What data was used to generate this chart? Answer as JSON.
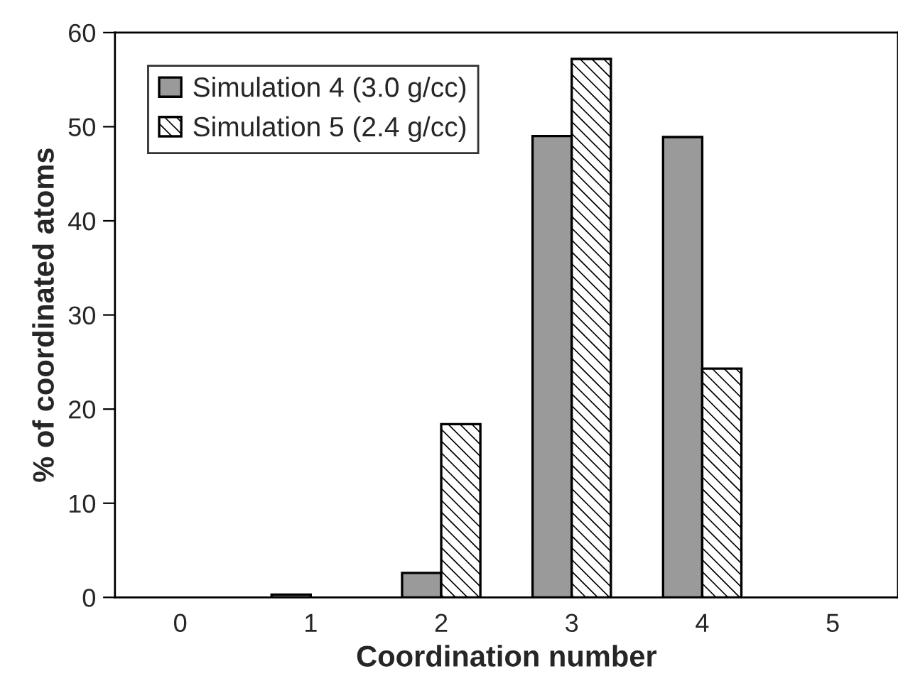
{
  "chart_data": {
    "type": "bar",
    "xlabel": "Coordination number",
    "ylabel": "% of coordinated atoms",
    "categories": [
      "0",
      "1",
      "2",
      "3",
      "4",
      "5"
    ],
    "series": [
      {
        "name": "Simulation 4 (3.0 g/cc)",
        "color": "#9a9a9a",
        "values": [
          0,
          0.3,
          2.6,
          49.0,
          48.9,
          0
        ]
      },
      {
        "name": "Simulation 5 (2.4 g/cc)",
        "color": "#ffffff",
        "values": [
          0,
          0,
          18.4,
          57.2,
          24.3,
          0
        ]
      }
    ],
    "ylim": [
      0,
      60
    ],
    "yticks": [
      0,
      10,
      20,
      30,
      40,
      50,
      60
    ],
    "grid": false,
    "legend": "top left"
  }
}
